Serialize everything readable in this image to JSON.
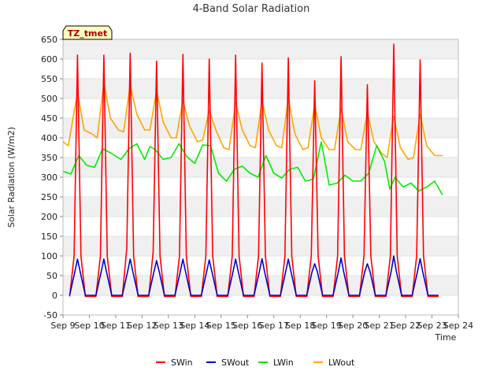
{
  "chart_data": {
    "type": "line",
    "title": "4-Band Solar Radiation",
    "xlabel": "Time",
    "ylabel": "Solar Radiation (W/m2)",
    "tag": "TZ_tmet",
    "xlim": [
      9,
      24
    ],
    "ylim": [
      -50,
      650
    ],
    "x_ticks": [
      9,
      10,
      11,
      12,
      13,
      14,
      15,
      16,
      17,
      18,
      19,
      20,
      21,
      22,
      23,
      24
    ],
    "x_tick_labels": [
      "Sep 9",
      "Sep 10",
      "Sep 11",
      "Sep 12",
      "Sep 13",
      "Sep 14",
      "Sep 15",
      "Sep 16",
      "Sep 17",
      "Sep 18",
      "Sep 19",
      "Sep 20",
      "Sep 21",
      "Sep 22",
      "Sep 23",
      "Sep 24"
    ],
    "y_ticks": [
      -50,
      0,
      50,
      100,
      150,
      200,
      250,
      300,
      350,
      400,
      450,
      500,
      550,
      600,
      650
    ],
    "grid": "horizontal bands",
    "legend_position": "bottom",
    "series": [
      {
        "name": "SWin",
        "color": "#ff0000",
        "values_desc": "daily peak values",
        "x": [
          9.25,
          9.42,
          9.55,
          9.68,
          9.85,
          10.25,
          10.42,
          10.55,
          10.68,
          10.85,
          11.25,
          11.42,
          11.55,
          11.68,
          11.85,
          12.25,
          12.42,
          12.55,
          12.68,
          12.85,
          13.25,
          13.42,
          13.55,
          13.68,
          13.85,
          14.25,
          14.42,
          14.55,
          14.68,
          14.85,
          15.25,
          15.42,
          15.55,
          15.68,
          15.85,
          16.25,
          16.42,
          16.55,
          16.68,
          16.85,
          17.25,
          17.42,
          17.55,
          17.68,
          17.85,
          18.25,
          18.42,
          18.55,
          18.68,
          18.85,
          19.25,
          19.42,
          19.55,
          19.68,
          19.85,
          20.25,
          20.42,
          20.55,
          20.68,
          20.85,
          21.25,
          21.42,
          21.55,
          21.68,
          21.85,
          22.25,
          22.42,
          22.55,
          22.68,
          22.85,
          23.25
        ],
        "y": [
          -3,
          100,
          610,
          100,
          -3,
          -3,
          100,
          610,
          100,
          -3,
          -3,
          120,
          615,
          100,
          -3,
          -3,
          110,
          595,
          100,
          -3,
          -3,
          100,
          612,
          100,
          -3,
          -3,
          100,
          600,
          100,
          -3,
          -3,
          100,
          610,
          100,
          -3,
          -3,
          100,
          590,
          100,
          -3,
          -3,
          100,
          603,
          100,
          -3,
          -3,
          100,
          545,
          100,
          -3,
          -3,
          100,
          606,
          100,
          -3,
          -3,
          100,
          535,
          100,
          -3,
          -3,
          100,
          638,
          100,
          -3,
          -3,
          100,
          598,
          100,
          -3,
          -3
        ]
      },
      {
        "name": "SWout",
        "color": "#0000cc",
        "x": [
          9.25,
          9.45,
          9.55,
          9.65,
          9.85,
          10.25,
          10.45,
          10.55,
          10.65,
          10.85,
          11.25,
          11.45,
          11.55,
          11.65,
          11.85,
          12.25,
          12.45,
          12.55,
          12.65,
          12.85,
          13.25,
          13.45,
          13.55,
          13.65,
          13.85,
          14.25,
          14.45,
          14.55,
          14.65,
          14.85,
          15.25,
          15.45,
          15.55,
          15.65,
          15.85,
          16.25,
          16.45,
          16.55,
          16.65,
          16.85,
          17.25,
          17.45,
          17.55,
          17.65,
          17.85,
          18.25,
          18.45,
          18.55,
          18.65,
          18.85,
          19.25,
          19.45,
          19.55,
          19.65,
          19.85,
          20.25,
          20.45,
          20.55,
          20.65,
          20.85,
          21.25,
          21.45,
          21.55,
          21.65,
          21.85,
          22.25,
          22.45,
          22.55,
          22.65,
          22.85,
          23.25
        ],
        "y": [
          0,
          60,
          92,
          60,
          0,
          0,
          60,
          92,
          60,
          0,
          0,
          60,
          92,
          60,
          0,
          0,
          60,
          88,
          60,
          0,
          0,
          60,
          92,
          60,
          0,
          0,
          60,
          90,
          60,
          0,
          0,
          60,
          92,
          60,
          0,
          0,
          60,
          93,
          60,
          0,
          0,
          60,
          92,
          60,
          0,
          0,
          60,
          80,
          60,
          0,
          0,
          60,
          95,
          60,
          0,
          0,
          60,
          80,
          60,
          0,
          0,
          60,
          100,
          60,
          0,
          0,
          60,
          93,
          60,
          0,
          0
        ]
      },
      {
        "name": "LWin",
        "color": "#00ee00",
        "x": [
          9.0,
          9.3,
          9.6,
          9.9,
          10.2,
          10.5,
          10.8,
          11.2,
          11.5,
          11.8,
          12.1,
          12.3,
          12.5,
          12.8,
          13.1,
          13.4,
          13.7,
          14.0,
          14.3,
          14.6,
          14.9,
          15.2,
          15.5,
          15.8,
          16.1,
          16.4,
          16.7,
          17.0,
          17.3,
          17.6,
          17.9,
          18.2,
          18.5,
          18.8,
          19.1,
          19.4,
          19.7,
          20.0,
          20.3,
          20.6,
          20.9,
          21.2,
          21.4,
          21.6,
          21.9,
          22.2,
          22.5,
          22.8,
          23.1,
          23.4
        ],
        "y": [
          315,
          308,
          355,
          330,
          325,
          372,
          362,
          345,
          372,
          385,
          345,
          378,
          370,
          345,
          350,
          385,
          352,
          335,
          382,
          380,
          310,
          290,
          320,
          328,
          310,
          300,
          355,
          310,
          298,
          320,
          325,
          290,
          295,
          390,
          280,
          285,
          305,
          290,
          290,
          310,
          380,
          340,
          270,
          300,
          275,
          285,
          265,
          275,
          290,
          255
        ]
      },
      {
        "name": "LWout",
        "color": "#ffa500",
        "x": [
          9.0,
          9.2,
          9.55,
          9.8,
          10.1,
          10.3,
          10.55,
          10.8,
          11.1,
          11.3,
          11.55,
          11.8,
          12.1,
          12.3,
          12.55,
          12.8,
          13.1,
          13.3,
          13.55,
          13.8,
          14.1,
          14.3,
          14.55,
          14.8,
          15.1,
          15.3,
          15.55,
          15.8,
          16.1,
          16.3,
          16.55,
          16.8,
          17.1,
          17.3,
          17.55,
          17.8,
          18.1,
          18.3,
          18.55,
          18.8,
          19.1,
          19.3,
          19.55,
          19.8,
          20.1,
          20.3,
          20.55,
          20.8,
          21.1,
          21.3,
          21.55,
          21.8,
          22.1,
          22.3,
          22.55,
          22.8,
          23.1,
          23.4
        ],
        "y": [
          390,
          380,
          515,
          420,
          410,
          400,
          540,
          450,
          420,
          415,
          535,
          460,
          420,
          420,
          520,
          440,
          400,
          400,
          495,
          430,
          390,
          395,
          470,
          420,
          375,
          370,
          490,
          420,
          380,
          375,
          495,
          420,
          380,
          375,
          500,
          410,
          370,
          375,
          485,
          400,
          370,
          370,
          475,
          390,
          370,
          370,
          465,
          390,
          360,
          350,
          455,
          375,
          345,
          350,
          460,
          380,
          355,
          355
        ]
      }
    ]
  }
}
